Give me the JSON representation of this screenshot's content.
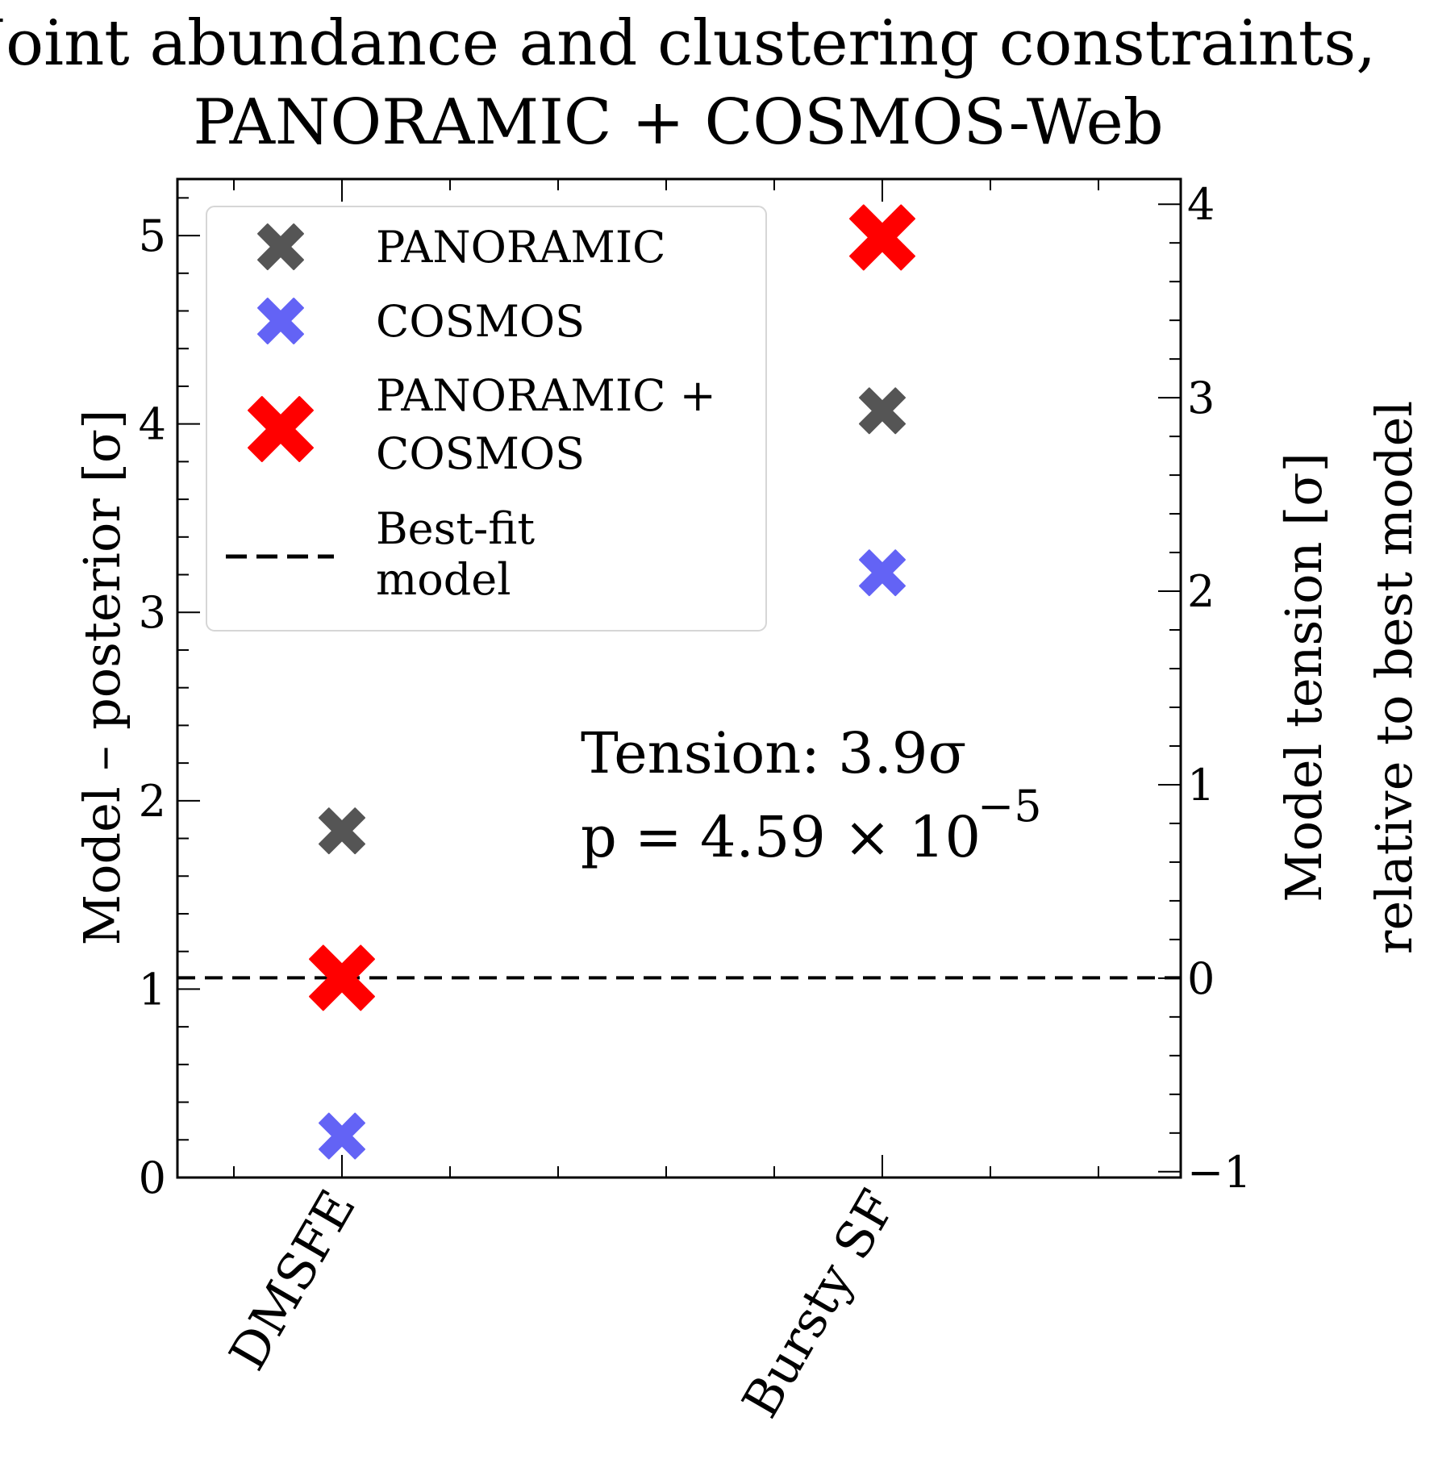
{
  "chart_data": {
    "type": "scatter",
    "title_lines": [
      "Joint abundance and clustering constraints,",
      "PANORAMIC + COSMOS-Web"
    ],
    "categories": [
      "DMSFE",
      "Bursty SF"
    ],
    "ylabel": "Model – posterior [σ]",
    "ylabel2_lines": [
      "Model tension [σ]",
      "relative to best model"
    ],
    "ylim": [
      0,
      5.3
    ],
    "yticks": [
      "0",
      "1",
      "2",
      "3",
      "4",
      "5"
    ],
    "ylim2": [
      -1.03,
      4.13
    ],
    "yticks2": [
      "−1",
      "0",
      "1",
      "2",
      "3",
      "4"
    ],
    "series": [
      {
        "name": "PANORAMIC",
        "color": "#555555",
        "marker_size": "small",
        "values": [
          1.84,
          4.07
        ]
      },
      {
        "name": "COSMOS",
        "color": "#6363f5",
        "marker_size": "small",
        "values": [
          0.22,
          3.21
        ]
      },
      {
        "name": "PANORAMIC + COSMOS",
        "color": "#ff0000",
        "marker_size": "large",
        "values": [
          1.06,
          4.99
        ]
      }
    ],
    "reference_line": {
      "name": "Best-fit model",
      "value": 1.06,
      "style": "dashed",
      "color": "#000000"
    },
    "legend": {
      "position": "top-left",
      "entries": [
        {
          "lines": [
            "PANORAMIC"
          ]
        },
        {
          "lines": [
            "COSMOS"
          ]
        },
        {
          "lines": [
            "PANORAMIC +",
            "COSMOS"
          ]
        },
        {
          "lines": [
            "Best-fit",
            "model"
          ]
        }
      ]
    },
    "annotation": {
      "tension": "Tension: 3.9σ",
      "pvalue_base": "p = 4.59 × 10",
      "pvalue_exp": "−5"
    },
    "grid": false
  }
}
